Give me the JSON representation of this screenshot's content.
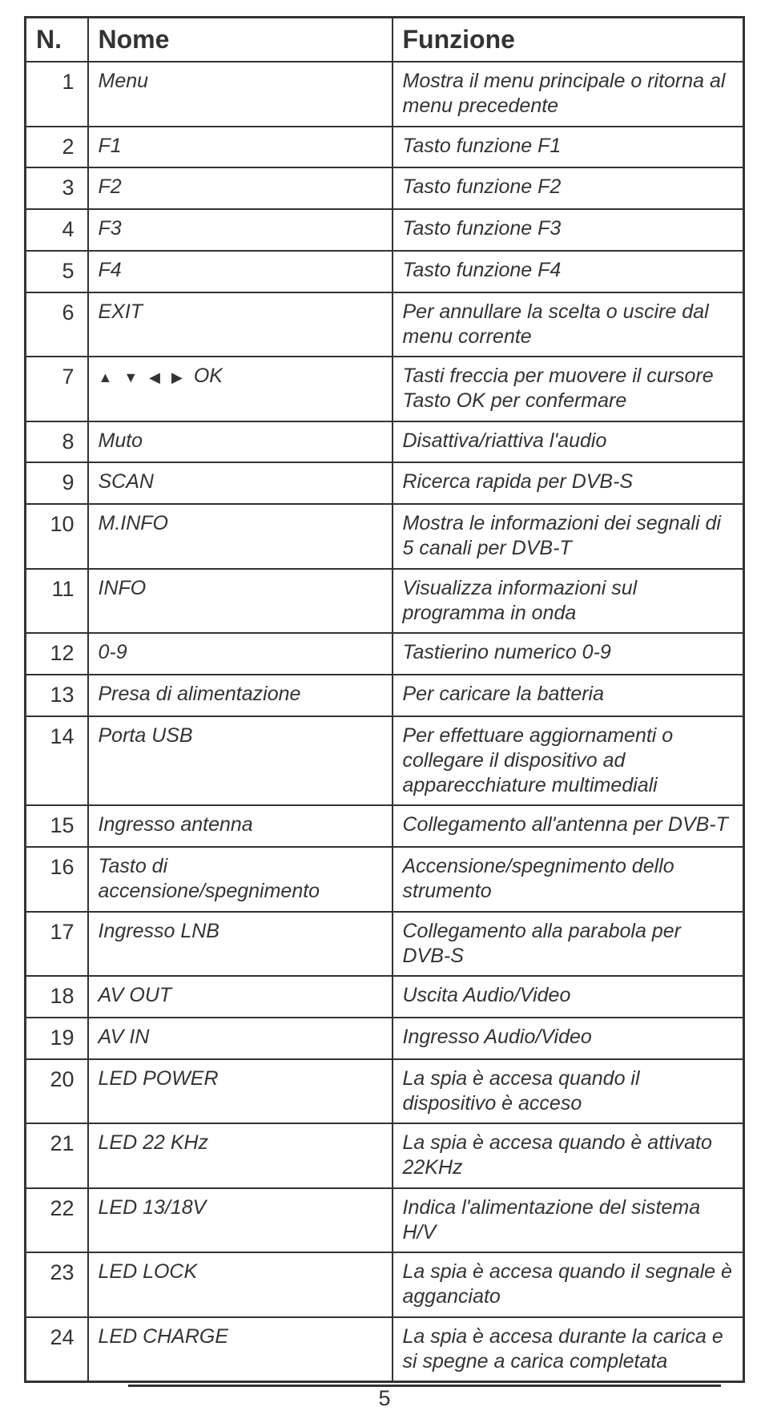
{
  "columns": {
    "n": "N.",
    "nome": "Nome",
    "funzione": "Funzione"
  },
  "arrows": {
    "up": "▲",
    "down": "▼",
    "left": "◀",
    "right": "▶"
  },
  "rows": [
    {
      "n": "1",
      "nome": "Menu",
      "fn": "Mostra il menu principale o ritorna al menu precedente"
    },
    {
      "n": "2",
      "nome": "F1",
      "fn": "Tasto funzione F1"
    },
    {
      "n": "3",
      "nome": "F2",
      "fn": "Tasto funzione F2"
    },
    {
      "n": "4",
      "nome": "F3",
      "fn": "Tasto funzione F3"
    },
    {
      "n": "5",
      "nome": "F4",
      "fn": "Tasto funzione F4"
    },
    {
      "n": "6",
      "nome": "EXIT",
      "fn": "Per annullare la scelta o uscire dal menu corrente"
    },
    {
      "n": "7",
      "nome_arrows": true,
      "nome_suffix": "OK",
      "fn": "Tasti freccia per muovere il cursore\nTasto OK per confermare"
    },
    {
      "n": "8",
      "nome": "Muto",
      "fn": "Disattiva/riattiva l'audio"
    },
    {
      "n": "9",
      "nome": "SCAN",
      "fn": "Ricerca rapida per DVB-S"
    },
    {
      "n": "10",
      "nome": "M.INFO",
      "fn": "Mostra le informazioni dei segnali di 5 canali per DVB-T"
    },
    {
      "n": "11",
      "nome": "INFO",
      "fn": "Visualizza informazioni sul programma in onda"
    },
    {
      "n": "12",
      "nome": "0-9",
      "fn": "Tastierino numerico 0-9"
    },
    {
      "n": "13",
      "nome": "Presa di alimentazione",
      "fn": "Per caricare la batteria"
    },
    {
      "n": "14",
      "nome": "Porta USB",
      "fn": "Per effettuare aggiornamenti o collegare il dispositivo ad apparecchiature multimediali"
    },
    {
      "n": "15",
      "nome": "Ingresso antenna",
      "fn": "Collegamento all'antenna per DVB-T"
    },
    {
      "n": "16",
      "nome": "Tasto di accensione/spegnimento",
      "fn": "Accensione/spegnimento dello strumento"
    },
    {
      "n": "17",
      "nome": "Ingresso LNB",
      "fn": "Collegamento alla parabola per DVB-S"
    },
    {
      "n": "18",
      "nome": "AV OUT",
      "fn": "Uscita Audio/Video"
    },
    {
      "n": "19",
      "nome": "AV IN",
      "fn": "Ingresso Audio/Video"
    },
    {
      "n": "20",
      "nome": "LED POWER",
      "fn": "La spia è accesa quando il dispositivo è acceso"
    },
    {
      "n": "21",
      "nome": "LED 22 KHz",
      "fn": "La spia è accesa quando è attivato 22KHz"
    },
    {
      "n": "22",
      "nome": "LED 13/18V",
      "fn": "Indica l'alimentazione del sistema H/V"
    },
    {
      "n": "23",
      "nome": "LED LOCK",
      "fn": "La spia è accesa quando il segnale è agganciato"
    },
    {
      "n": "24",
      "nome": "LED CHARGE",
      "fn": "La spia è accesa durante la carica e si spegne a carica completata"
    }
  ],
  "page_number": "5"
}
